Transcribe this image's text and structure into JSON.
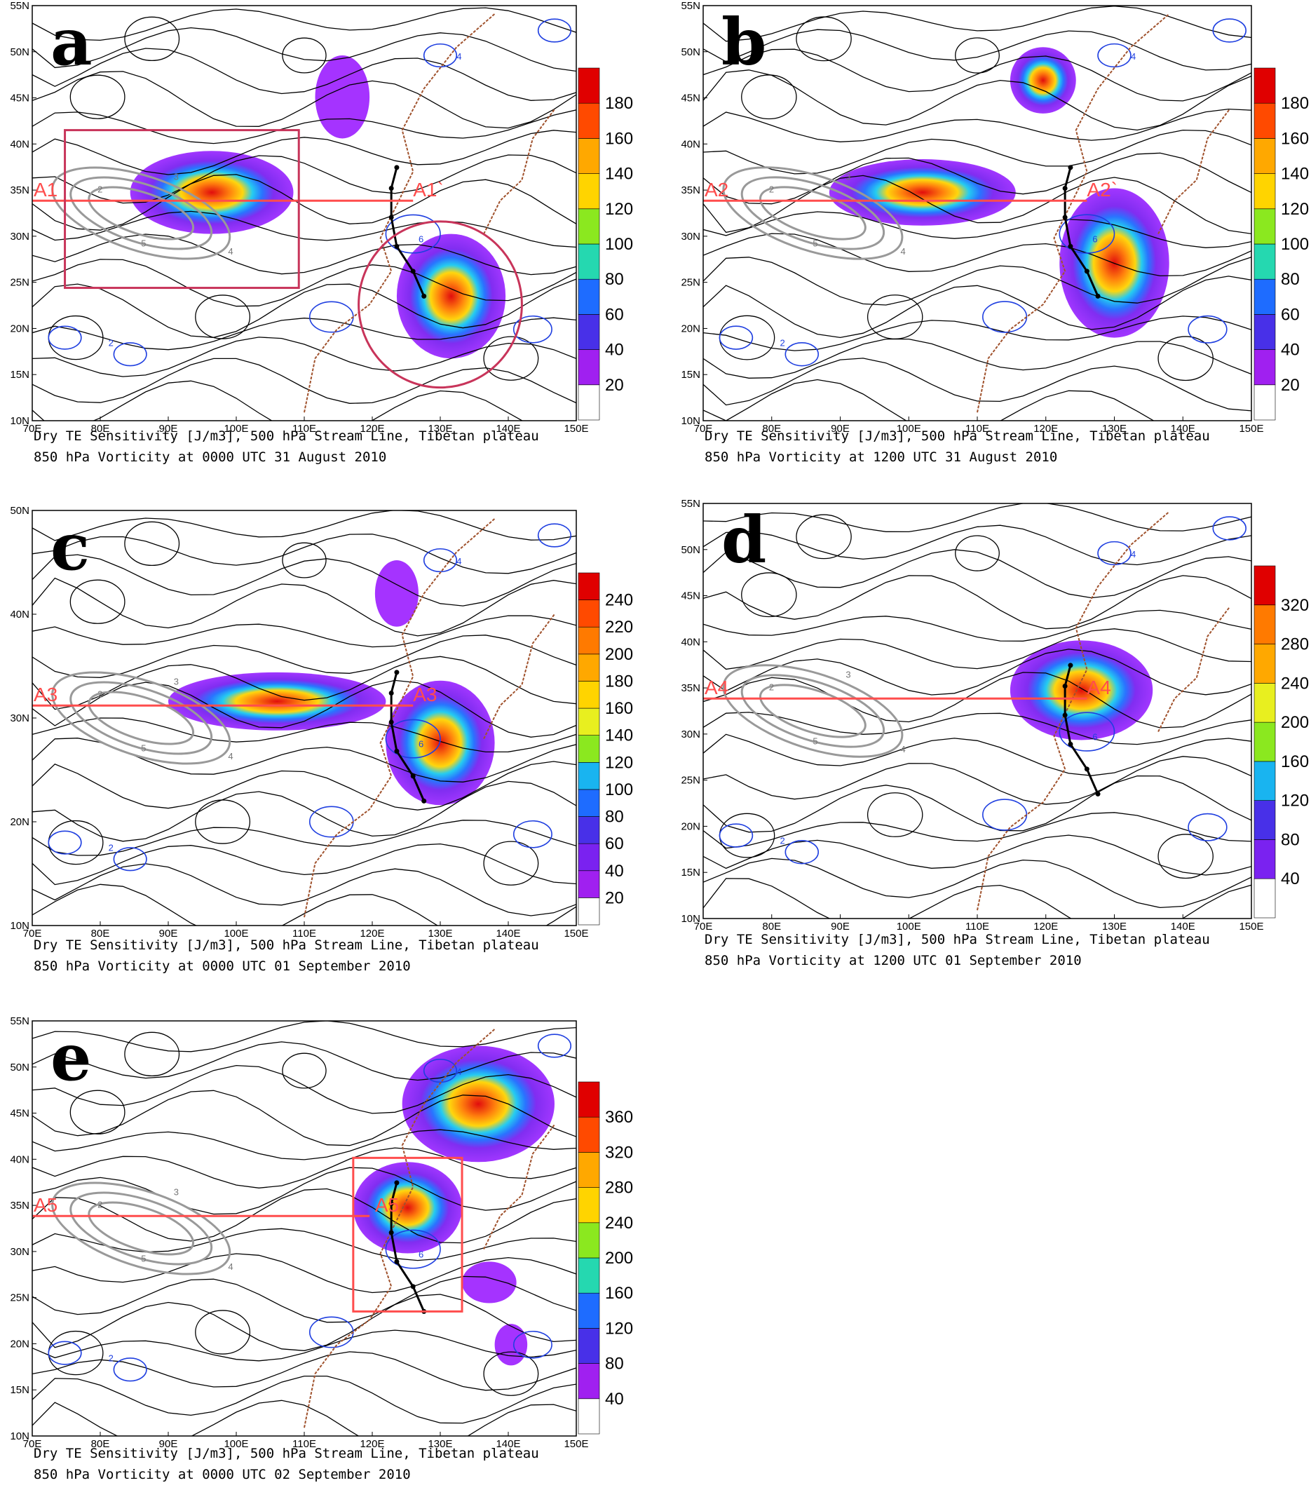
{
  "figure": {
    "panels": [
      {
        "id": "a",
        "caption_line1": "Dry TE Sensitivity [J/m3], 500 hPa Stream Line, Tibetan plateau",
        "caption_line2": "850 hPa Vorticity at 0000 UTC 31 August 2010",
        "colorbar": [
          "20",
          "40",
          "60",
          "80",
          "100",
          "120",
          "140",
          "160",
          "180"
        ],
        "section_left": "A1",
        "section_right": "A1`",
        "lon_ticks": [
          "70E",
          "80E",
          "90E",
          "100E",
          "110E",
          "120E",
          "130E",
          "140E",
          "150E"
        ],
        "lat_ticks": [
          "10N",
          "15N",
          "20N",
          "25N",
          "30N",
          "35N",
          "40N",
          "45N",
          "50N",
          "55N"
        ]
      },
      {
        "id": "b",
        "caption_line1": "Dry TE Sensitivity [J/m3], 500 hPa Stream Line, Tibetan plateau",
        "caption_line2": "850 hPa Vorticity at 1200 UTC 31 August 2010",
        "colorbar": [
          "20",
          "40",
          "60",
          "80",
          "100",
          "120",
          "140",
          "160",
          "180"
        ],
        "section_left": "A2",
        "section_right": "A2`",
        "lon_ticks": [
          "70E",
          "80E",
          "90E",
          "100E",
          "110E",
          "120E",
          "130E",
          "140E",
          "150E"
        ],
        "lat_ticks": [
          "10N",
          "15N",
          "20N",
          "25N",
          "30N",
          "35N",
          "40N",
          "45N",
          "50N",
          "55N"
        ]
      },
      {
        "id": "c",
        "caption_line1": "Dry TE Sensitivity [J/m3], 500 hPa Stream Line, Tibetan plateau",
        "caption_line2": "850 hPa Vorticity at 0000 UTC 01 September 2010",
        "colorbar": [
          "20",
          "40",
          "60",
          "80",
          "100",
          "120",
          "140",
          "160",
          "180",
          "200",
          "220",
          "240"
        ],
        "section_left": "A3",
        "section_right": "A3",
        "lon_ticks": [
          "70E",
          "80E",
          "90E",
          "100E",
          "110E",
          "120E",
          "130E",
          "140E",
          "150E"
        ],
        "lat_ticks": [
          "10N",
          "20N",
          "30N",
          "40N",
          "50N"
        ]
      },
      {
        "id": "d",
        "caption_line1": "Dry TE Sensitivity [J/m3], 500 hPa Stream Line, Tibetan plateau",
        "caption_line2": "850 hPa Vorticity at 1200 UTC 01 September 2010",
        "colorbar": [
          "40",
          "80",
          "120",
          "160",
          "200",
          "240",
          "280",
          "320"
        ],
        "section_left": "A4",
        "section_right": "A4",
        "lon_ticks": [
          "70E",
          "80E",
          "90E",
          "100E",
          "110E",
          "120E",
          "130E",
          "140E",
          "150E"
        ],
        "lat_ticks": [
          "10N",
          "15N",
          "20N",
          "25N",
          "30N",
          "35N",
          "40N",
          "45N",
          "50N",
          "55N"
        ]
      },
      {
        "id": "e",
        "caption_line1": "Dry TE Sensitivity [J/m3], 500 hPa Stream Line, Tibetan plateau",
        "caption_line2": "850 hPa Vorticity at 0000 UTC 02 September 2010",
        "colorbar": [
          "40",
          "80",
          "120",
          "160",
          "200",
          "240",
          "280",
          "320",
          "360"
        ],
        "section_left": "A5",
        "section_right": "A5",
        "lon_ticks": [
          "70E",
          "80E",
          "90E",
          "100E",
          "110E",
          "120E",
          "130E",
          "140E",
          "150E"
        ],
        "lat_ticks": [
          "10N",
          "15N",
          "20N",
          "25N",
          "30N",
          "35N",
          "40N",
          "45N",
          "50N",
          "55N"
        ]
      }
    ],
    "contour_labels": {
      "vorticity": [
        "2",
        "4",
        "6"
      ],
      "plateau": [
        "2",
        "3",
        "4",
        "5"
      ]
    },
    "colors": {
      "section_line": "#ff4d4d",
      "box": "#c8345a",
      "streamline": "#000000",
      "vorticity": "#1f3fe0",
      "plateau": "#999999",
      "coast": "#a0522d"
    }
  }
}
